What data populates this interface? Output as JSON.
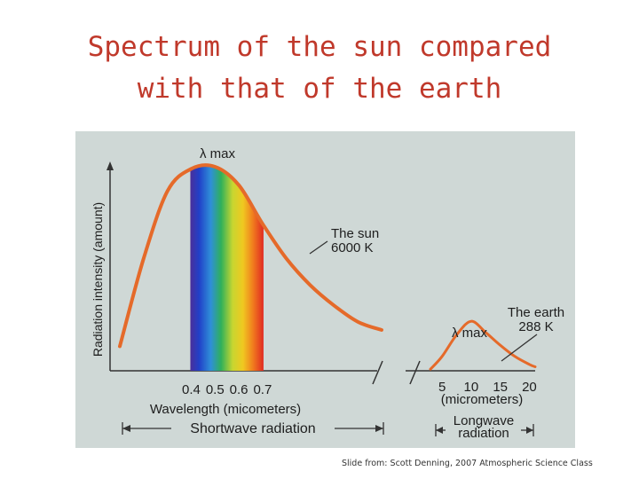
{
  "slide": {
    "title_line1": "Spectrum of the sun compared",
    "title_line2": "with that of the earth",
    "credit": "Slide from: Scott Denning, 2007 Atmospheric Science Class"
  },
  "chart_data": [
    {
      "type": "line",
      "ylabel": "Radiation intensity (amount)",
      "xlabel": "Wavelength (micometers)",
      "band_label": "Shortwave radiation",
      "x_ticks": [
        "0.4",
        "0.5",
        "0.6",
        "0.7"
      ],
      "x": [
        0.1,
        0.2,
        0.3,
        0.4,
        0.5,
        0.6,
        0.7,
        0.8,
        0.9,
        1.0,
        1.1,
        1.2
      ],
      "values": [
        0.12,
        0.55,
        0.88,
        0.99,
        1.0,
        0.91,
        0.72,
        0.55,
        0.42,
        0.32,
        0.24,
        0.2
      ],
      "visible_band": [
        0.4,
        0.7
      ],
      "peak_label": "λ max",
      "series": [
        {
          "name": "The sun",
          "label": "The sun\n6000 K"
        }
      ],
      "curve_color": "#e56a2a"
    },
    {
      "type": "line",
      "xlabel": "(micrometers)",
      "band_label": "Longwave\nradiation",
      "x_ticks": [
        "5",
        "10",
        "15",
        "20"
      ],
      "x": [
        3,
        5,
        7.5,
        10,
        12.5,
        15,
        17.5,
        20,
        21
      ],
      "values": [
        0.02,
        0.18,
        0.45,
        0.62,
        0.48,
        0.32,
        0.18,
        0.08,
        0.05
      ],
      "peak_label": "λ max",
      "series": [
        {
          "name": "The earth",
          "label": "The earth\n288 K"
        }
      ],
      "curve_color": "#e56a2a"
    }
  ]
}
